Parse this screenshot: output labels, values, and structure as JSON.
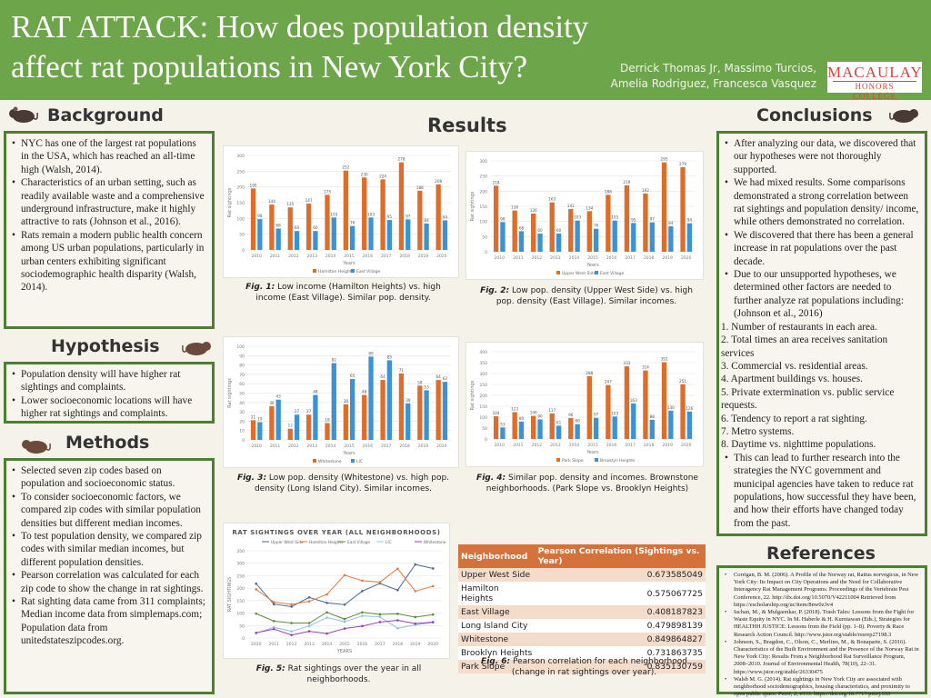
{
  "header": {
    "title": "RAT ATTACK: How does population density affect rat populations in New York City?",
    "authors_line1": "Derrick Thomas Jr, Massimo Turcios,",
    "authors_line2": "Amelia Rodriguez, Francesca Vasquez",
    "logo_line1": "MACAULAY",
    "logo_line2": "HONORS COLLEGE"
  },
  "background": {
    "heading": "Background",
    "items": [
      "NYC has one of the largest rat populations in the USA, which has reached an all-time high (Walsh, 2014).",
      "Characteristics of an urban setting, such as readily available waste and a comprehensive underground infrastructure, make it highly attractive to rats (Johnson et al., 2016).",
      "Rats remain a modern public health concern among US urban populations, particularly in urban centers exhibiting significant sociodemographic health disparity (Walsh, 2014)."
    ]
  },
  "hypothesis": {
    "heading": "Hypothesis",
    "items": [
      "Population density will have higher rat sightings and complaints.",
      "Lower socioeconomic locations will have higher rat sightings and complaints."
    ]
  },
  "methods": {
    "heading": "Methods",
    "items": [
      "Selected seven zip codes based on population and socioeconomic status.",
      "To consider socioeconomic factors, we compared zip codes with similar population densities but different median incomes.",
      "To test population density, we compared zip codes with similar median incomes, but different population densities.",
      "Pearson correlation was calculated for each zip code to show the change in rat sightings.",
      "Rat sighting data came from 311 complaints; Median income data from simplemaps.com; Population data from unitedstateszipcodes.org."
    ]
  },
  "results": {
    "heading": "Results"
  },
  "captions": {
    "fig1_label": "Fig. 1:",
    "fig1": " Low income (Hamilton Heights) vs. high income (East Village). Similar pop. density.",
    "fig2_label": "Fig. 2:",
    "fig2": " Low pop. density (Upper West Side) vs. high pop. density (East Village). Similar incomes.",
    "fig3_label": "Fig. 3:",
    "fig3": " Low pop. density (Whitestone) vs. high pop. density (Long Island City). Similar incomes.",
    "fig4_label": "Fig. 4:",
    "fig4": " Similar pop. density and incomes. Brownstone neighborhoods. (Park Slope vs. Brooklyn Heights)",
    "fig5_label": "Fig. 5:",
    "fig5": " Rat sightings over the year in all neighborhoods.",
    "fig6_label": "Fig. 6:",
    "fig6": " Pearson correlation for each neighborhood (change in rat sightings over year)."
  },
  "colors": {
    "header": "#6da54b",
    "border": "#4d7f33",
    "orange": "#e06c2a",
    "blue": "#3b93d6"
  },
  "chart_data": [
    {
      "type": "bar",
      "xlabel": "Years",
      "ylabel": "Rat sightings",
      "ylim": [
        0,
        300
      ],
      "yticks": [
        0,
        50,
        100,
        150,
        200,
        250,
        300
      ],
      "categories": [
        "2010",
        "2011",
        "2012",
        "2013",
        "2014",
        "2015",
        "2016",
        "2017",
        "2018",
        "2019",
        "2020"
      ],
      "series": [
        {
          "name": "Hamilton Heights",
          "values": [
            195,
            144,
            135,
            147,
            175,
            252,
            230,
            224,
            278,
            188,
            208
          ]
        },
        {
          "name": "East Village",
          "values": [
            98,
            68,
            60,
            60,
            103,
            76,
            103,
            95,
            97,
            84,
            94
          ]
        }
      ],
      "legend": "bottom"
    },
    {
      "type": "bar",
      "xlabel": "Years",
      "ylabel": "Rat sightings",
      "ylim": [
        0,
        300
      ],
      "yticks": [
        0,
        50,
        100,
        150,
        200,
        250,
        300
      ],
      "categories": [
        "2010",
        "2011",
        "2012",
        "2013",
        "2014",
        "2015",
        "2016",
        "2017",
        "2018",
        "2019",
        "2020"
      ],
      "series": [
        {
          "name": "Upper West Side",
          "values": [
            218,
            136,
            126,
            163,
            141,
            134,
            188,
            219,
            192,
            295,
            279
          ]
        },
        {
          "name": "East Village",
          "values": [
            98,
            68,
            60,
            60,
            103,
            76,
            103,
            95,
            97,
            84,
            94
          ]
        }
      ],
      "legend": "bottom"
    },
    {
      "type": "bar",
      "xlabel": "Years",
      "ylabel": "Rat sightings",
      "ylim": [
        0,
        100
      ],
      "yticks": [
        0,
        10,
        20,
        30,
        40,
        50,
        60,
        70,
        80,
        90,
        100
      ],
      "categories": [
        "2010",
        "2011",
        "2012",
        "2013",
        "2014",
        "2015",
        "2016",
        "2017",
        "2018",
        "2019",
        "2020"
      ],
      "series": [
        {
          "name": "Whitestone",
          "values": [
            21,
            36,
            12,
            27,
            18,
            38,
            48,
            64,
            71,
            58,
            64
          ]
        },
        {
          "name": "LIC",
          "values": [
            19,
            43,
            27,
            48,
            82,
            65,
            89,
            85,
            39,
            53,
            62
          ]
        }
      ],
      "legend": "bottom"
    },
    {
      "type": "bar",
      "xlabel": "Years",
      "ylabel": "Rat sightings",
      "ylim": [
        0,
        400
      ],
      "yticks": [
        0,
        50,
        100,
        150,
        200,
        250,
        300,
        350,
        400
      ],
      "categories": [
        "2010",
        "2011",
        "2012",
        "2013",
        "2014",
        "2015",
        "2016",
        "2017",
        "2018",
        "2019",
        "2020"
      ],
      "series": [
        {
          "name": "Park Slope",
          "values": [
            104,
            123,
            106,
            117,
            96,
            288,
            247,
            333,
            314,
            352,
            251
          ]
        },
        {
          "name": "Brooklyn Heights",
          "values": [
            53,
            80,
            90,
            61,
            68,
            97,
            103,
            163,
            88,
            130,
            126
          ]
        }
      ],
      "legend": "bottom"
    },
    {
      "type": "line",
      "title": "RAT SIGHTINGS OVER YEAR (ALL NEIGHBORHOODS)",
      "xlabel": "YEARS",
      "ylabel": "RAT SIGHTINGS",
      "ylim": [
        0,
        350
      ],
      "yticks": [
        0,
        50,
        100,
        150,
        200,
        250,
        300,
        350
      ],
      "categories": [
        "2010",
        "2011",
        "2012",
        "2013",
        "2014",
        "2015",
        "2016",
        "2017",
        "2018",
        "2019",
        "2020"
      ],
      "series": [
        {
          "name": "Upper West Side",
          "color": "#4a6b95",
          "values": [
            218,
            136,
            126,
            163,
            141,
            134,
            188,
            219,
            192,
            295,
            279
          ]
        },
        {
          "name": "Hamilton Heights",
          "color": "#e07b3c",
          "values": [
            195,
            144,
            135,
            147,
            175,
            252,
            230,
            224,
            278,
            188,
            208
          ]
        },
        {
          "name": "East Village",
          "color": "#5b8c3a",
          "values": [
            98,
            68,
            60,
            60,
            103,
            76,
            103,
            95,
            97,
            84,
            94
          ]
        },
        {
          "name": "LIC",
          "color": "#8ec1ea",
          "values": [
            19,
            43,
            27,
            48,
            82,
            65,
            89,
            85,
            39,
            53,
            62
          ]
        },
        {
          "name": "Whitestone",
          "color": "#9b3fb0",
          "values": [
            21,
            36,
            12,
            27,
            18,
            38,
            48,
            64,
            71,
            58,
            64
          ]
        }
      ],
      "legend": "top"
    },
    {
      "type": "table",
      "columns": [
        "Neighborhood",
        "Pearson Correlation (Sightings vs. Year)"
      ],
      "rows": [
        [
          "Upper West Side",
          "0.673585049"
        ],
        [
          "Hamilton Heights",
          "0.575067725"
        ],
        [
          "East Village",
          "0.408187823"
        ],
        [
          "Long Island City",
          "0.479898139"
        ],
        [
          "Whitestone",
          "0.849864827"
        ],
        [
          "Brooklyn Heights",
          "0.731863735"
        ],
        [
          "Park Slope",
          "0.835130759"
        ]
      ]
    }
  ],
  "conclusions": {
    "heading": "Conclusions",
    "items": [
      "After analyzing our data, we discovered that our hypotheses were not thoroughly supported.",
      "We had mixed results. Some comparisons demonstrated a strong correlation between rat sightings and population density/ income, while others demonstrated no correlation.",
      "We discovered that there has been a general increase in rat populations over the past decade.",
      "Due to our unsupported hypotheses, we determined other factors are needed to further analyze rat populations including: (Johnson et al., 2016)"
    ],
    "factors": [
      "1. Number of restaurants in each area.",
      "2. Total times an area receives sanitation services",
      "3. Commercial vs. residential areas.",
      "4. Apartment buildings vs. houses.",
      "5. Private extermination vs. public service requests.",
      "6. Tendency to report a rat sighting.",
      "7. Metro systems.",
      "8. Daytime vs. nighttime populations."
    ],
    "final": "This can lead to further research into the strategies the NYC government and municipal agencies have taken to reduce rat populations, how successful they have been, and how their efforts have changed today from the past."
  },
  "references": {
    "heading": "References",
    "items": [
      "Corrigan, B. M. (2006). A Profile of the Norway rat, Rattus norvegicus, in New York City: Its Impact on City Operations and the Need for Collaborative Interagency Rat Management Programs. Proceedings of the Vertebrate Pest Conference, 22. http://dx.doi.org/10.5070/V42211004 Retrieved from https://escholarship.org/uc/item/8nw0z3v4",
      "Iachan, M., & Mulgaonkar, P. (2018). Trash Tales: Lessons from the Fight for Waste Equity in NYC. In M. Haberle & H. Kurniawan (Eds.), Strategies for HEALTHH JUSTICE: Lessons from the Field (pp. 1–8). Poverty & Race Research Action Council. http://www.jstor.org/stable/resrep27198.3",
      "Johnson, S., Bragdon, C., Olson, C., Merlino, M., & Bonaparte, S. (2016). Characteristics of the Built Environment and the Presence of the Norway Rat in New York City: Results From a Neighborhood Rat Surveillance Program, 2008–2010. Journal of Environmental Health, 78(10), 22–31. https://www.jstor.org/stable/26330475",
      "Walsh M. G. (2014). Rat sightings in New York City are associated with neighborhood sociodemographics, housing characteristics, and proximity to open public space. PeerJ, 2, e533. https://doi.org/10.7717/peerj.533"
    ]
  }
}
